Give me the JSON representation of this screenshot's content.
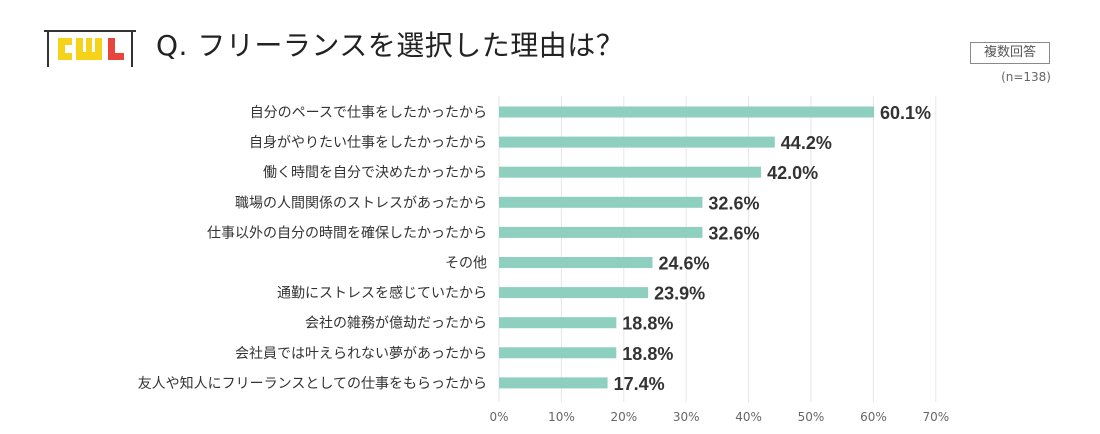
{
  "header": {
    "logo_text": "CWL",
    "title": "Q. フリーランスを選択した理由は？",
    "badge": "複数回答",
    "sample": "(n=138)"
  },
  "colors": {
    "bar": "#8ecfbf",
    "grid": "#e6e6e6",
    "title": "#222222",
    "logo_yellow": "#f5d31b",
    "logo_red": "#e8453c"
  },
  "chart_data": {
    "type": "bar",
    "orientation": "horizontal",
    "title": "Q. フリーランスを選択した理由は？",
    "xlabel": "",
    "ylabel": "",
    "xlim": [
      0,
      70
    ],
    "x_ticks": [
      "0%",
      "10%",
      "20%",
      "30%",
      "40%",
      "50%",
      "60%",
      "70%"
    ],
    "categories": [
      "自分のペースで仕事をしたかったから",
      "自身がやりたい仕事をしたかったから",
      "働く時間を自分で決めたかったから",
      "職場の人間関係のストレスがあったから",
      "仕事以外の自分の時間を確保したかったから",
      "その他",
      "通勤にストレスを感じていたから",
      "会社の雑務が億劫だったから",
      "会社員では叶えられない夢があったから",
      "友人や知人にフリーランスとしての仕事をもらったから"
    ],
    "values": [
      60.1,
      44.2,
      42.0,
      32.6,
      32.6,
      24.6,
      23.9,
      18.8,
      18.8,
      17.4
    ],
    "value_labels": [
      "60.1%",
      "44.2%",
      "42.0%",
      "32.6%",
      "32.6%",
      "24.6%",
      "23.9%",
      "18.8%",
      "18.8%",
      "17.4%"
    ],
    "grid": true
  }
}
